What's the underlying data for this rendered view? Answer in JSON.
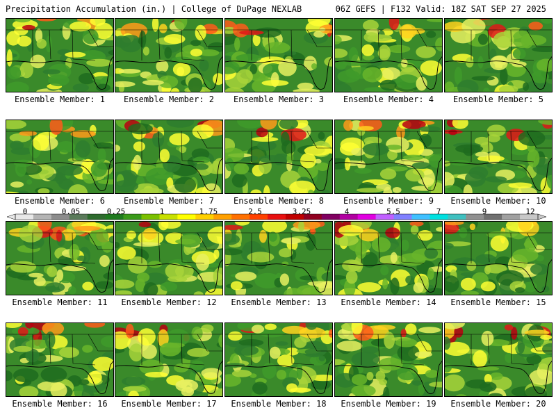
{
  "header": {
    "left_title": "Precipitation Accumulation (in.) | College of DuPage NEXLAB",
    "right_title": "06Z GEFS | F132 Valid: 18Z SAT SEP 27 2025"
  },
  "colorbar": {
    "tick_labels": [
      "0",
      "0.05",
      "0.25",
      "1",
      "1.75",
      "2.5",
      "3.25",
      "4",
      "5.5",
      "7",
      "9",
      "12"
    ],
    "colors": [
      "#e8e8e8",
      "#b4b4b4",
      "#8c8c8c",
      "#5a7a5a",
      "#2e6b2e",
      "#1f7a1f",
      "#3a9a1a",
      "#7ac000",
      "#c8e000",
      "#ffff00",
      "#ffd000",
      "#ffa000",
      "#ff7000",
      "#ff4000",
      "#e81010",
      "#c00000",
      "#900020",
      "#800060",
      "#b000a0",
      "#e000e0",
      "#c060ff",
      "#8080ff",
      "#40c0ff",
      "#00e0e0",
      "#40c0c0",
      "#909090",
      "#707070",
      "#a0a0a0",
      "#c8c8c8"
    ]
  },
  "members": [
    {
      "label": "Ensemble Member: 1"
    },
    {
      "label": "Ensemble Member: 2"
    },
    {
      "label": "Ensemble Member: 3"
    },
    {
      "label": "Ensemble Member: 4"
    },
    {
      "label": "Ensemble Member: 5"
    },
    {
      "label": "Ensemble Member: 6"
    },
    {
      "label": "Ensemble Member: 7"
    },
    {
      "label": "Ensemble Member: 8"
    },
    {
      "label": "Ensemble Member: 9"
    },
    {
      "label": "Ensemble Member: 10"
    },
    {
      "label": "Ensemble Member: 11"
    },
    {
      "label": "Ensemble Member: 12"
    },
    {
      "label": "Ensemble Member: 13"
    },
    {
      "label": "Ensemble Member: 14"
    },
    {
      "label": "Ensemble Member: 15"
    },
    {
      "label": "Ensemble Member: 16"
    },
    {
      "label": "Ensemble Member: 17"
    },
    {
      "label": "Ensemble Member: 18"
    },
    {
      "label": "Ensemble Member: 19"
    },
    {
      "label": "Ensemble Member: 20"
    }
  ]
}
